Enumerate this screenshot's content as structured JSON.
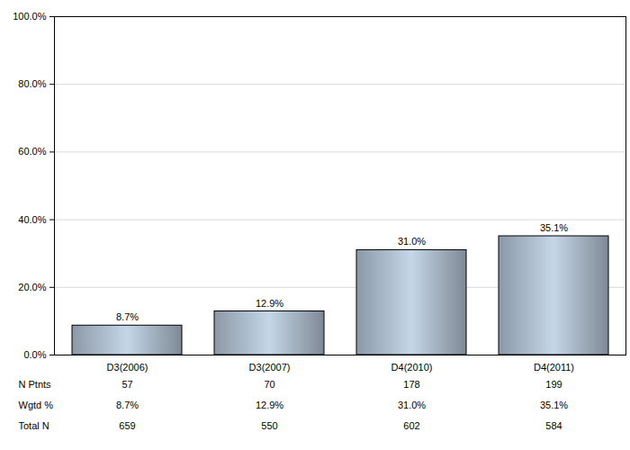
{
  "chart_data": {
    "type": "bar",
    "categories": [
      "D3(2006)",
      "D3(2007)",
      "D4(2010)",
      "D4(2011)"
    ],
    "values": [
      8.7,
      12.9,
      31.0,
      35.1
    ],
    "value_labels": [
      "8.7%",
      "12.9%",
      "31.0%",
      "35.1%"
    ],
    "data_labels": true,
    "color": "#a7b6c6",
    "ylim": [
      0,
      100
    ],
    "yticks": [
      {
        "value": 0,
        "label": "0.0%"
      },
      {
        "value": 20,
        "label": "20.0%"
      },
      {
        "value": 40,
        "label": "40.0%"
      },
      {
        "value": 60,
        "label": "60.0%"
      },
      {
        "value": 80,
        "label": "80.0%"
      },
      {
        "value": 100,
        "label": "100.0%"
      }
    ],
    "grid": true,
    "table": [
      {
        "label": "N Ptnts",
        "values": [
          57,
          70,
          178,
          199
        ]
      },
      {
        "label": "Wgtd %",
        "values": [
          8.7,
          12.9,
          31.0,
          35.1
        ],
        "value_labels": [
          "8.7%",
          "12.9%",
          "31.0%",
          "35.1%"
        ]
      },
      {
        "label": "Total N",
        "values": [
          659,
          550,
          602,
          584
        ]
      }
    ]
  }
}
